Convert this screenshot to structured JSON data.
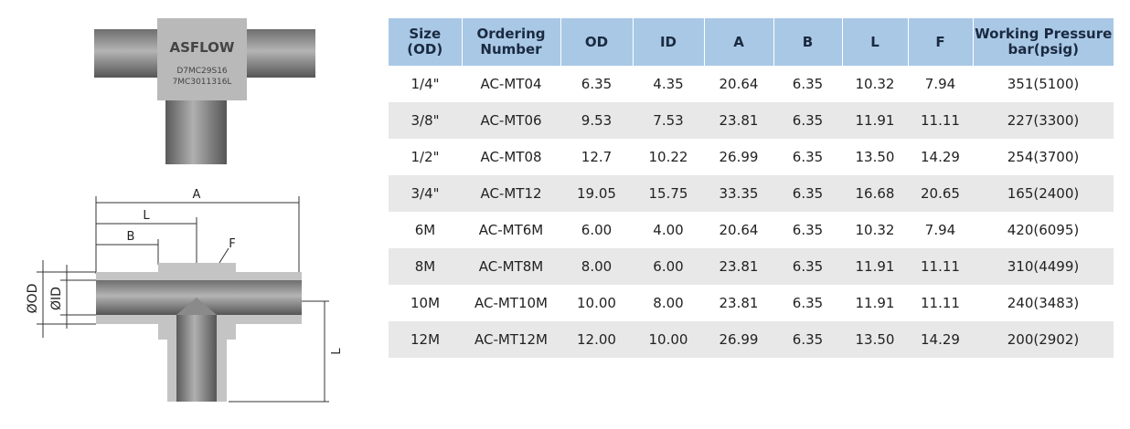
{
  "product_image": {
    "brand": "ASFLOW",
    "marking_1": "D7MC29S16",
    "marking_2": "7MC3011316L"
  },
  "drawing": {
    "dim_a": "A",
    "dim_l": "L",
    "dim_b": "B",
    "dim_f": "F",
    "dim_od": "ØOD",
    "dim_id": "ØID",
    "dim_l_vertical": "L"
  },
  "table": {
    "headers": [
      [
        "Size",
        "(OD)"
      ],
      [
        "Ordering",
        "Number"
      ],
      [
        "OD"
      ],
      [
        "ID"
      ],
      [
        "A"
      ],
      [
        "B"
      ],
      [
        "L"
      ],
      [
        "F"
      ],
      [
        "Working Pressure",
        "bar(psig)"
      ]
    ],
    "rows": [
      [
        "1/4\"",
        "AC-MT04",
        "6.35",
        "4.35",
        "20.64",
        "6.35",
        "10.32",
        "7.94",
        "351(5100)"
      ],
      [
        "3/8\"",
        "AC-MT06",
        "9.53",
        "7.53",
        "23.81",
        "6.35",
        "11.91",
        "11.11",
        "227(3300)"
      ],
      [
        "1/2\"",
        "AC-MT08",
        "12.7",
        "10.22",
        "26.99",
        "6.35",
        "13.50",
        "14.29",
        "254(3700)"
      ],
      [
        "3/4\"",
        "AC-MT12",
        "19.05",
        "15.75",
        "33.35",
        "6.35",
        "16.68",
        "20.65",
        "165(2400)"
      ],
      [
        "6M",
        "AC-MT6M",
        "6.00",
        "4.00",
        "20.64",
        "6.35",
        "10.32",
        "7.94",
        "420(6095)"
      ],
      [
        "8M",
        "AC-MT8M",
        "8.00",
        "6.00",
        "23.81",
        "6.35",
        "11.91",
        "11.11",
        "310(4499)"
      ],
      [
        "10M",
        "AC-MT10M",
        "10.00",
        "8.00",
        "23.81",
        "6.35",
        "11.91",
        "11.11",
        "240(3483)"
      ],
      [
        "12M",
        "AC-MT12M",
        "12.00",
        "10.00",
        "26.99",
        "6.35",
        "13.50",
        "14.29",
        "200(2902)"
      ]
    ]
  }
}
